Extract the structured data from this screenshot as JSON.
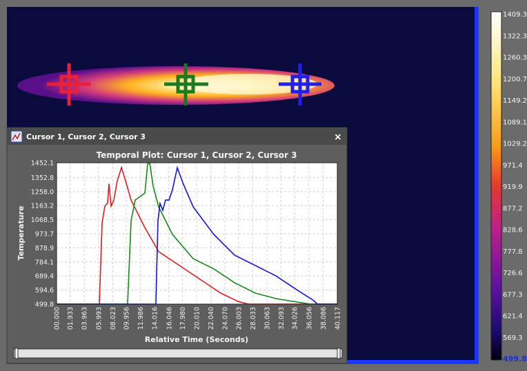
{
  "window": {
    "title": "Cursor 1, Cursor 2, Cursor 3",
    "close": "×"
  },
  "chart_data": {
    "type": "line",
    "title": "Temporal Plot: Cursor 1, Cursor 2, Cursor 3",
    "x_label": "Relative Time (Seconds)",
    "y_label": "Temperature",
    "xlim": [
      0,
      40.117
    ],
    "ylim": [
      499.8,
      1452.1
    ],
    "xticks": [
      {
        "value": 0,
        "label": "00.000"
      },
      {
        "value": 1.933,
        "label": "01.933"
      },
      {
        "value": 3.963,
        "label": "03.963"
      },
      {
        "value": 5.993,
        "label": "05.993"
      },
      {
        "value": 8.023,
        "label": "08.023"
      },
      {
        "value": 9.956,
        "label": "09.956"
      },
      11.986,
      14.016,
      16.046,
      {
        "value": 17.98,
        "label": "17.980"
      },
      {
        "value": 20.01,
        "label": "20.010"
      },
      {
        "value": 22.04,
        "label": "22.040"
      },
      {
        "value": 24.07,
        "label": "24.070"
      },
      26.003,
      28.033,
      30.063,
      32.093,
      34.026,
      36.056,
      38.086,
      40.117
    ],
    "yticks": [
      499.8,
      594.6,
      689.4,
      784.1,
      878.9,
      973.7,
      1068.5,
      1163.2,
      {
        "value": 1258,
        "label": "1258.0"
      },
      1352.8,
      1452.1
    ],
    "grid": true,
    "series": [
      {
        "color": "#e31a1c",
        "x": [
          0,
          6.11,
          6.51,
          6.9,
          7.29,
          7.49,
          7.79,
          8.18,
          8.67,
          9.27,
          9.86,
          10.65,
          12.62,
          14.59,
          17.55,
          20.5,
          23.46,
          25.92,
          27.4,
          40.117
        ],
        "values": [
          499.8,
          499.8,
          1050,
          1160,
          1180,
          1310,
          1160,
          1200,
          1330,
          1420,
          1330,
          1200,
          1015,
          853,
          760,
          667,
          574,
          518,
          499.8,
          499.8
        ]
      },
      {
        "color": "#138a13",
        "x": [
          0,
          10.15,
          10.65,
          11.24,
          11.93,
          12.62,
          13.01,
          13.31,
          13.8,
          14.59,
          16.56,
          19.52,
          22.47,
          25.43,
          28.39,
          31.35,
          34.3,
          36.27,
          40.117
        ],
        "values": [
          499.8,
          499.8,
          1062,
          1201,
          1224,
          1248,
          1443,
          1452,
          1294,
          1155,
          969,
          806,
          737,
          644,
          574,
          537,
          514,
          499.8,
          499.8
        ]
      },
      {
        "color": "#1212e0",
        "x": [
          0,
          14.19,
          14.49,
          14.78,
          15.18,
          15.57,
          16.07,
          16.56,
          17.25,
          18.04,
          19.52,
          22.47,
          25.43,
          28.39,
          31.35,
          34.3,
          36.77,
          37.26,
          40.117
        ],
        "values": [
          499.8,
          499.8,
          1062,
          1178,
          1132,
          1201,
          1201,
          1271,
          1419,
          1317,
          1155,
          969,
          830,
          760,
          690,
          597,
          523,
          499.8,
          499.8
        ]
      }
    ]
  },
  "colorbar": {
    "labels": [
      1409.3,
      1322.3,
      1260.3,
      1200.7,
      1149.2,
      1089.1,
      1029.2,
      971.4,
      919.9,
      877.2,
      828.6,
      777.8,
      726.6,
      677.3,
      621.4,
      569.3,
      499.8
    ]
  }
}
